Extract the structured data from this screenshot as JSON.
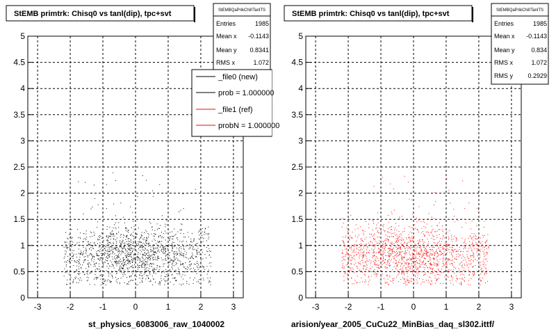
{
  "chart_data": [
    {
      "type": "scatter",
      "title": "StEMB primtrk: Chisq0 vs tanl(dip), tpc+svt",
      "xlabel": "st_physics_6083006_raw_1040002",
      "ylabel": "",
      "xlim": [
        -3.3,
        3.3
      ],
      "ylim": [
        0,
        5
      ],
      "x_ticks": [
        "-3",
        "-2",
        "-1",
        "0",
        "1",
        "2",
        "3"
      ],
      "y_ticks": [
        "0",
        "0.5",
        "1",
        "1.5",
        "2",
        "2.5",
        "3",
        "3.5",
        "4",
        "4.5",
        "5"
      ],
      "grid": true,
      "marker_color": "#000000",
      "distribution": {
        "x_mean": -0.1143,
        "x_rms": 1.072,
        "y_mean": 0.8341,
        "y_rms": 0.2929,
        "x_range": [
          -2.2,
          2.3
        ],
        "count": 1985
      },
      "stats": {
        "name": "StEMBQaPrikChi0TanlTS",
        "rows": [
          {
            "label": "Entries",
            "value": "1985"
          },
          {
            "label": "Mean x",
            "value": "-0.1143"
          },
          {
            "label": "Mean y",
            "value": "0.8341"
          },
          {
            "label": "RMS x",
            "value": "1.072"
          }
        ]
      },
      "legend": {
        "placement": "top-right",
        "entries": [
          {
            "label": "_file0 (new)",
            "color": "#000000"
          },
          {
            "label": "prob = 1.000000",
            "color": "#000000"
          },
          {
            "label": "_file1 (ref)",
            "color": "#ff0000"
          },
          {
            "label": "probN = 1.000000",
            "color": "#ff0000"
          }
        ]
      }
    },
    {
      "type": "scatter",
      "title": "StEMB primtrk: Chisq0 vs tanl(dip), tpc+svt",
      "xlabel": "arision/year_2005_CuCu22_MinBias_daq_sl302.ittf/",
      "ylabel": "",
      "xlim": [
        -3.3,
        3.3
      ],
      "ylim": [
        0,
        5
      ],
      "x_ticks": [
        "-3",
        "-2",
        "-1",
        "0",
        "1",
        "2",
        "3"
      ],
      "y_ticks": [
        "0",
        "0.5",
        "1",
        "1.5",
        "2",
        "2.5",
        "3",
        "3.5",
        "4",
        "4.5",
        "5"
      ],
      "grid": true,
      "marker_color": "#ff0000",
      "distribution": {
        "x_mean": -0.1143,
        "x_rms": 1.072,
        "y_mean": 0.834,
        "y_rms": 0.2929,
        "x_range": [
          -2.2,
          2.3
        ],
        "count": 1985
      },
      "stats": {
        "name": "StEMBQaPrikChi0TanlTS",
        "rows": [
          {
            "label": "Entries",
            "value": "1985"
          },
          {
            "label": "Mean x",
            "value": "-0.1143"
          },
          {
            "label": "Mean y",
            "value": "0.834"
          },
          {
            "label": "RMS x",
            "value": "1.072"
          },
          {
            "label": "RMS y",
            "value": "0.2929"
          }
        ]
      }
    }
  ]
}
